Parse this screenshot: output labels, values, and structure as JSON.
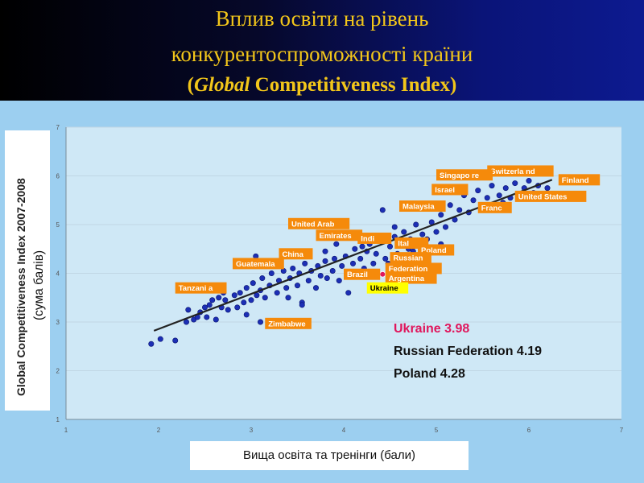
{
  "title": {
    "line1": "Вплив освіти на  рівень",
    "line2": "конкурентоспроможності країни",
    "line3_open": "(",
    "line3_italic": "Global",
    "line3_rest": " Competitiveness Index)"
  },
  "annotations": {
    "ukraine": "Ukraine 3.98",
    "russia": "Russian Federation 4.19",
    "poland": "Poland 4.28"
  },
  "colors": {
    "title": "#f2c61a",
    "plot_background": "#cfe8f6",
    "point": "#1c2fb5",
    "label_box": "#f58a0b",
    "ukraine_box": "#ffff00",
    "highlight": "#e0165c"
  },
  "chart_data": {
    "type": "scatter",
    "xlabel": "Вища освіта та тренінги (бали)",
    "ylabel": "Global Competitiveness Index 2007-2008",
    "ylabel2": "(сума балів)",
    "xlim": [
      1,
      7
    ],
    "ylim": [
      1,
      7
    ],
    "x_ticks": [
      "1",
      "2",
      "3",
      "4",
      "5",
      "6",
      "7"
    ],
    "y_ticks": [
      "1",
      "2",
      "3",
      "4",
      "5",
      "6",
      "7"
    ],
    "grid": "horizontal",
    "trendline": {
      "x": [
        1.95,
        6.25
      ],
      "y": [
        2.82,
        5.92
      ]
    },
    "points": [
      [
        1.92,
        2.55
      ],
      [
        2.02,
        2.65
      ],
      [
        2.18,
        2.62
      ],
      [
        2.3,
        3.0
      ],
      [
        2.32,
        3.25
      ],
      [
        2.38,
        3.05
      ],
      [
        2.42,
        3.1
      ],
      [
        2.45,
        3.2
      ],
      [
        2.5,
        3.3
      ],
      [
        2.52,
        3.1
      ],
      [
        2.55,
        3.35
      ],
      [
        2.58,
        3.45
      ],
      [
        2.62,
        3.05
      ],
      [
        2.65,
        3.5
      ],
      [
        2.68,
        3.3
      ],
      [
        2.72,
        3.45
      ],
      [
        2.75,
        3.25
      ],
      [
        2.82,
        3.55
      ],
      [
        2.85,
        3.3
      ],
      [
        2.88,
        3.6
      ],
      [
        2.92,
        3.4
      ],
      [
        2.95,
        3.7
      ],
      [
        3.0,
        3.45
      ],
      [
        3.02,
        3.8
      ],
      [
        3.06,
        3.55
      ],
      [
        3.1,
        3.65
      ],
      [
        3.12,
        3.9
      ],
      [
        3.15,
        3.5
      ],
      [
        3.2,
        3.75
      ],
      [
        3.22,
        4.0
      ],
      [
        3.28,
        3.6
      ],
      [
        3.3,
        3.85
      ],
      [
        3.35,
        4.05
      ],
      [
        3.38,
        3.7
      ],
      [
        3.42,
        3.9
      ],
      [
        3.45,
        4.1
      ],
      [
        3.5,
        3.75
      ],
      [
        3.52,
        4.0
      ],
      [
        3.55,
        3.4
      ],
      [
        3.58,
        4.2
      ],
      [
        3.62,
        3.85
      ],
      [
        3.65,
        4.05
      ],
      [
        3.7,
        3.7
      ],
      [
        3.72,
        4.15
      ],
      [
        3.75,
        3.95
      ],
      [
        3.8,
        4.25
      ],
      [
        3.82,
        3.9
      ],
      [
        3.88,
        4.05
      ],
      [
        3.9,
        4.3
      ],
      [
        3.95,
        3.85
      ],
      [
        3.98,
        4.15
      ],
      [
        4.02,
        4.35
      ],
      [
        4.05,
        4.0
      ],
      [
        4.1,
        4.2
      ],
      [
        4.12,
        4.5
      ],
      [
        4.15,
        3.95
      ],
      [
        4.18,
        4.3
      ],
      [
        4.22,
        4.1
      ],
      [
        4.25,
        4.45
      ],
      [
        4.28,
        4.6
      ],
      [
        4.32,
        4.2
      ],
      [
        4.35,
        4.4
      ],
      [
        4.4,
        4.7
      ],
      [
        4.42,
        5.3
      ],
      [
        4.45,
        4.3
      ],
      [
        4.5,
        4.55
      ],
      [
        4.55,
        4.75
      ],
      [
        4.58,
        4.4
      ],
      [
        4.62,
        4.6
      ],
      [
        4.65,
        4.85
      ],
      [
        4.7,
        4.5
      ],
      [
        4.72,
        4.7
      ],
      [
        4.78,
        5.0
      ],
      [
        4.82,
        4.6
      ],
      [
        4.85,
        4.8
      ],
      [
        4.9,
        4.7
      ],
      [
        4.95,
        5.05
      ],
      [
        5.0,
        4.85
      ],
      [
        5.05,
        5.2
      ],
      [
        5.1,
        4.95
      ],
      [
        5.15,
        5.4
      ],
      [
        5.2,
        5.1
      ],
      [
        5.25,
        5.3
      ],
      [
        5.3,
        5.6
      ],
      [
        5.35,
        5.25
      ],
      [
        5.4,
        5.5
      ],
      [
        5.45,
        5.7
      ],
      [
        5.5,
        5.35
      ],
      [
        5.55,
        5.55
      ],
      [
        5.6,
        5.8
      ],
      [
        5.62,
        5.4
      ],
      [
        5.68,
        5.6
      ],
      [
        5.72,
        5.45
      ],
      [
        5.75,
        5.75
      ],
      [
        5.8,
        5.55
      ],
      [
        5.85,
        5.85
      ],
      [
        5.9,
        5.6
      ],
      [
        5.95,
        5.75
      ],
      [
        6.0,
        5.9
      ],
      [
        6.05,
        5.65
      ],
      [
        6.1,
        5.8
      ],
      [
        6.2,
        5.75
      ],
      [
        3.1,
        3.0
      ],
      [
        3.55,
        3.35
      ],
      [
        4.05,
        3.6
      ],
      [
        4.3,
        3.7
      ],
      [
        4.2,
        4.55
      ],
      [
        3.92,
        4.6
      ],
      [
        4.48,
        4.2
      ],
      [
        3.05,
        4.35
      ],
      [
        3.8,
        4.45
      ],
      [
        4.6,
        4.25
      ],
      [
        4.75,
        4.45
      ],
      [
        4.55,
        4.95
      ],
      [
        5.05,
        4.6
      ],
      [
        3.4,
        3.5
      ],
      [
        2.7,
        3.6
      ],
      [
        2.95,
        3.15
      ]
    ],
    "highlighted_point": {
      "label": "Ukraine",
      "x": 4.42,
      "y": 3.98
    },
    "country_labels": [
      {
        "text": "Switzerla nd",
        "x": 5.55,
        "y": 6.1
      },
      {
        "text": "Singapo re",
        "x": 5.0,
        "y": 6.02
      },
      {
        "text": "Finland",
        "x": 6.32,
        "y": 5.92
      },
      {
        "text": "Israel",
        "x": 4.95,
        "y": 5.72
      },
      {
        "text": "United States",
        "x": 5.85,
        "y": 5.58
      },
      {
        "text": "Malaysia",
        "x": 4.6,
        "y": 5.38
      },
      {
        "text": "Franc",
        "x": 5.45,
        "y": 5.35
      },
      {
        "text": "United Arab",
        "x": 3.4,
        "y": 5.02
      },
      {
        "text": "Emirates",
        "x": 3.7,
        "y": 4.78
      },
      {
        "text": "Indi",
        "x": 4.15,
        "y": 4.72
      },
      {
        "text": "Ital",
        "x": 4.55,
        "y": 4.62
      },
      {
        "text": "Poland",
        "x": 4.8,
        "y": 4.48
      },
      {
        "text": "China",
        "x": 3.3,
        "y": 4.4
      },
      {
        "text": "Russian",
        "x": 4.5,
        "y": 4.32
      },
      {
        "text": "Guatemala",
        "x": 2.8,
        "y": 4.2
      },
      {
        "text": "Federation",
        "x": 4.45,
        "y": 4.1
      },
      {
        "text": "Brazil",
        "x": 4.0,
        "y": 3.98
      },
      {
        "text": "Argentina",
        "x": 4.45,
        "y": 3.9
      },
      {
        "text": "Ukraine",
        "x": 4.25,
        "y": 3.7
      },
      {
        "text": "Tanzani a",
        "x": 2.18,
        "y": 3.7
      },
      {
        "text": "Zimbabwe",
        "x": 3.15,
        "y": 2.97
      }
    ]
  }
}
